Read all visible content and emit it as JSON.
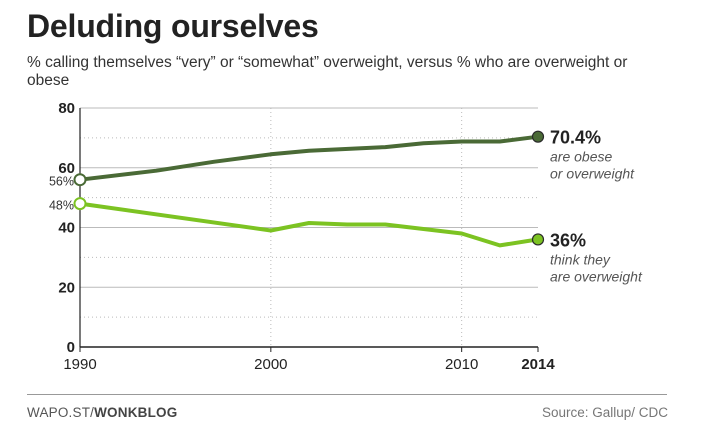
{
  "header": {
    "title": "Deluding ourselves",
    "subtitle": "% calling themselves “very” or “somewhat” overweight, versus % who are overweight or obese"
  },
  "footer": {
    "credit_prefix": "WAPO.ST/",
    "credit_brand": "WONKBLOG",
    "source": "Source: Gallup/ CDC"
  },
  "colors": {
    "obese_series": "#4a6a36",
    "perceived_series": "#7cc322",
    "axis": "#222222",
    "grid": "#bbbbbb",
    "start_marker_fill": "#ffffff"
  },
  "chart_data": {
    "type": "line",
    "xlim": [
      1990,
      2014
    ],
    "ylim": [
      0,
      80
    ],
    "x_ticks": [
      {
        "value": 1990,
        "label": "1990",
        "bold": false
      },
      {
        "value": 2000,
        "label": "2000",
        "bold": false
      },
      {
        "value": 2010,
        "label": "2010",
        "bold": false
      },
      {
        "value": 2014,
        "label": "2014",
        "bold": true
      }
    ],
    "y_ticks": [
      {
        "value": 0,
        "label": "0"
      },
      {
        "value": 20,
        "label": "20"
      },
      {
        "value": 40,
        "label": "40"
      },
      {
        "value": 60,
        "label": "60"
      },
      {
        "value": 80,
        "label": "80"
      }
    ],
    "y_gridlines": [
      10,
      30,
      50,
      70
    ],
    "x_gridlines": [
      2000,
      2010
    ],
    "series": [
      {
        "key": "obese",
        "points": [
          {
            "x": 1990,
            "y": 56
          },
          {
            "x": 1994,
            "y": 59
          },
          {
            "x": 1997,
            "y": 62
          },
          {
            "x": 2000,
            "y": 64.5
          },
          {
            "x": 2002,
            "y": 65.7
          },
          {
            "x": 2006,
            "y": 66.9
          },
          {
            "x": 2008,
            "y": 68.2
          },
          {
            "x": 2010,
            "y": 68.8
          },
          {
            "x": 2012,
            "y": 68.8
          },
          {
            "x": 2014,
            "y": 70.4
          }
        ],
        "start_label": "56%",
        "end_value_label": "70.4%",
        "end_note": "are obese or overweight"
      },
      {
        "key": "perceived",
        "points": [
          {
            "x": 1990,
            "y": 48
          },
          {
            "x": 2000,
            "y": 39
          },
          {
            "x": 2002,
            "y": 41.5
          },
          {
            "x": 2004,
            "y": 41
          },
          {
            "x": 2006,
            "y": 41
          },
          {
            "x": 2008,
            "y": 39.5
          },
          {
            "x": 2010,
            "y": 38
          },
          {
            "x": 2012,
            "y": 34
          },
          {
            "x": 2014,
            "y": 36
          }
        ],
        "start_label": "48%",
        "end_value_label": "36%",
        "end_note": "think they are overweight"
      }
    ]
  }
}
